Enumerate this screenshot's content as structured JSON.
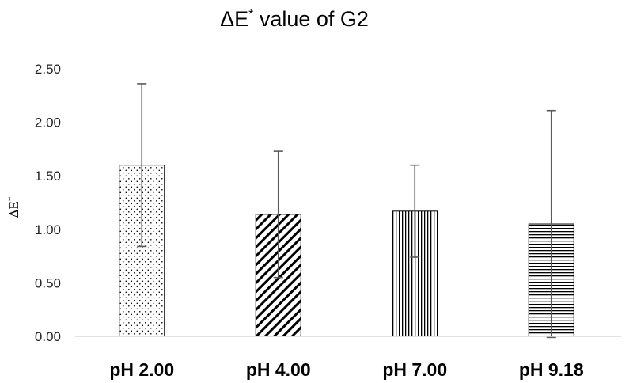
{
  "chart_data": {
    "type": "bar",
    "title": {
      "main": "ΔE",
      "sup": "*",
      "rest": " value of G2"
    },
    "ylabel": {
      "main": "ΔE",
      "sup": "*"
    },
    "xlabel": "",
    "categories": [
      "pH 2.00",
      "pH 4.00",
      "pH 7.00",
      "pH 9.18"
    ],
    "values": [
      1.6,
      1.14,
      1.17,
      1.05
    ],
    "error_plus": [
      0.76,
      0.59,
      0.43,
      1.06
    ],
    "error_minus": [
      0.76,
      0.59,
      0.43,
      1.06
    ],
    "patterns": [
      "dots",
      "diagonal-stripes",
      "vertical-stripes",
      "horizontal-stripes"
    ],
    "ylim": [
      0,
      2.5
    ],
    "yticks": [
      "0.00",
      "0.50",
      "1.00",
      "1.50",
      "2.00",
      "2.50"
    ],
    "grid": false,
    "legend": "none",
    "colors": {
      "bar_fill": "#ffffff",
      "bar_stroke": "#000000",
      "error_bar": "#595959",
      "axis": "#d9d9d9"
    }
  }
}
